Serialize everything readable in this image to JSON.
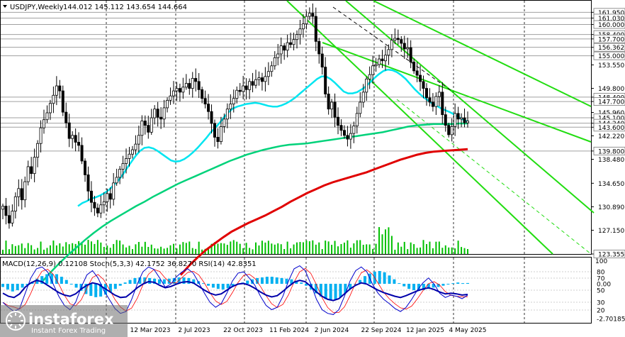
{
  "header": {
    "symbol": "USDJPY,Weekly",
    "ohlc": "144.012 145.112 143.654 144.664"
  },
  "indicator_label": "MACD(12,26,9) 0.12108  Stoch(5,3,3) 42.1752 36.8270  RSI(14) 42.8351",
  "watermark": {
    "brand": "instaforex",
    "tagline": "Instant Forex Trading"
  },
  "colors": {
    "candle": "#000000",
    "volume": "#00c000",
    "ma_fast": "#00e5f0",
    "ma_mid": "#00d27a",
    "ma_slow": "#e00000",
    "channel": "#22dd11",
    "macd_hist": "#00b0f0",
    "stoch_main": "#0000cc",
    "stoch_signal": "#ff0000",
    "rsi": "#0000aa",
    "level_line": "#a0a0a0",
    "watermark_bg": "#6e6e6e"
  },
  "chart_data": {
    "type": "candlestick",
    "timeframe": "Weekly",
    "ylim": [
      123.355,
      163.8
    ],
    "price_levels": [
      {
        "label": "161.950",
        "value": 161.95
      },
      {
        "label": "161.030",
        "value": 161.03
      },
      {
        "label": "160.000",
        "value": 160.0
      },
      {
        "label": "158.400",
        "value": 158.4
      },
      {
        "label": "157.700",
        "value": 157.7
      },
      {
        "label": "156.362",
        "value": 156.362
      },
      {
        "label": "155.000",
        "value": 155.0
      },
      {
        "label": "153.550",
        "value": 153.55
      },
      {
        "label": "149.800",
        "value": 149.8
      },
      {
        "label": "148.400",
        "value": 148.4
      },
      {
        "label": "147.700",
        "value": 147.7
      },
      {
        "label": "145.960",
        "value": 145.96
      },
      {
        "label": "145.100",
        "value": 145.1
      },
      {
        "label": "144.240",
        "value": 144.24
      },
      {
        "label": "143.600",
        "value": 143.6
      },
      {
        "label": "142.220",
        "value": 142.22
      },
      {
        "label": "139.800",
        "value": 139.8
      },
      {
        "label": "138.480",
        "value": 138.48
      },
      {
        "label": "134.650",
        "value": 134.65
      },
      {
        "label": "130.890",
        "value": 130.89
      },
      {
        "label": "127.150",
        "value": 127.15
      },
      {
        "label": "123.355",
        "value": 123.355
      }
    ],
    "horizontal_lines": [
      161.95,
      161.03,
      160.0,
      158.4,
      157.7,
      156.362,
      155.0,
      148.4,
      147.7,
      145.1,
      144.24,
      143.6,
      139.8
    ],
    "time_labels": [
      "12 Mar 2023",
      "2 Jul 2023",
      "22 Oct 2023",
      "11 Feb 2024",
      "2 Jun 2024",
      "22 Sep 2024",
      "12 Jan 2025",
      "4 May 2025"
    ],
    "close_series": [
      131.0,
      129.5,
      128.3,
      130.2,
      132.5,
      133.8,
      132.0,
      134.9,
      137.3,
      136.2,
      138.8,
      141.0,
      143.5,
      144.8,
      145.9,
      147.4,
      148.7,
      150.2,
      149.4,
      146.0,
      144.3,
      141.8,
      142.3,
      141.2,
      140.7,
      138.2,
      136.0,
      133.4,
      131.6,
      130.7,
      129.9,
      131.2,
      131.7,
      133.0,
      132.1,
      134.7,
      135.6,
      136.9,
      137.8,
      138.6,
      139.3,
      140.0,
      140.9,
      142.3,
      144.6,
      143.9,
      142.8,
      145.1,
      146.5,
      145.2,
      144.9,
      146.7,
      147.9,
      148.6,
      149.4,
      149.8,
      149.2,
      150.0,
      150.6,
      149.8,
      151.4,
      150.9,
      149.6,
      148.2,
      147.3,
      146.1,
      144.2,
      142.0,
      141.3,
      143.7,
      144.9,
      146.5,
      147.3,
      148.2,
      149.5,
      149.3,
      150.2,
      149.6,
      150.9,
      150.3,
      151.2,
      151.5,
      150.9,
      151.7,
      152.5,
      153.4,
      154.7,
      155.3,
      156.6,
      155.9,
      157.1,
      156.8,
      157.6,
      158.4,
      159.3,
      160.1,
      161.3,
      161.8,
      161.3,
      157.3,
      155.3,
      153.2,
      148.9,
      146.5,
      147.6,
      145.2,
      143.9,
      143.1,
      142.3,
      141.7,
      142.6,
      143.8,
      145.8,
      147.6,
      149.2,
      151.3,
      152.0,
      153.4,
      153.6,
      154.5,
      154.2,
      155.1,
      156.0,
      157.5,
      157.8,
      157.6,
      157.0,
      156.1,
      156.3,
      154.0,
      152.6,
      151.9,
      150.9,
      149.8,
      148.3,
      147.6,
      146.9,
      148.5,
      149.2,
      145.6,
      143.9,
      142.4,
      143.7,
      145.8,
      144.9,
      145.1,
      144.3,
      144.6
    ],
    "ma_fast_series": [
      131.0,
      131.5,
      131.8,
      132.2,
      132.4,
      132.7,
      133.1,
      133.6,
      134.3,
      135.0,
      135.9,
      137.0,
      138.0,
      139.0,
      139.8,
      140.3,
      140.4,
      140.2,
      139.8,
      139.3,
      138.8,
      138.3,
      138.1,
      138.2,
      138.5,
      139.0,
      139.6,
      140.3,
      141.1,
      141.9,
      142.8,
      143.5,
      144.3,
      145.2,
      146.0,
      146.6,
      146.9,
      147.1,
      147.3,
      147.4,
      147.5,
      147.4,
      147.2,
      147.0,
      146.9,
      146.9,
      147.1,
      147.4,
      147.8,
      148.3,
      148.9,
      149.5,
      150.1,
      150.7,
      151.3,
      151.7,
      151.7,
      151.3,
      150.7,
      150.0,
      149.3,
      149.0,
      149.0,
      149.2,
      149.6,
      150.1,
      150.8,
      151.5,
      152.1,
      152.6,
      152.8,
      152.7,
      152.4,
      151.9,
      151.3,
      150.5,
      149.7,
      149.0,
      148.4,
      147.9,
      147.4,
      147.0,
      146.6,
      146.3,
      146.0,
      145.6,
      145.2,
      144.8,
      144.5
    ],
    "ma_mid_series": [
      119.0,
      120.5,
      121.9,
      123.2,
      124.4,
      125.6,
      126.7,
      127.7,
      128.6,
      129.4,
      130.2,
      131.0,
      131.7,
      132.5,
      133.2,
      133.9,
      134.6,
      135.2,
      135.8,
      136.4,
      137.0,
      137.6,
      138.2,
      138.7,
      139.2,
      139.6,
      140.0,
      140.3,
      140.6,
      140.8,
      140.9,
      141.0,
      141.2,
      141.4,
      141.6,
      141.8,
      142.0,
      142.2,
      142.4,
      142.6,
      142.8,
      143.1,
      143.4,
      143.7,
      143.9,
      144.0,
      144.1,
      144.1,
      144.1,
      144.2,
      144.2
    ],
    "ma_slow_series": [
      120.0,
      121.5,
      122.8,
      124.0,
      125.0,
      126.0,
      126.9,
      127.6,
      128.3,
      128.9,
      129.5,
      130.2,
      130.9,
      131.7,
      132.4,
      133.1,
      133.7,
      134.3,
      134.8,
      135.2,
      135.6,
      136.0,
      136.4,
      136.9,
      137.4,
      137.9,
      138.4,
      138.8,
      139.2,
      139.5,
      139.7,
      139.8,
      139.9,
      140.0,
      140.1
    ],
    "macd_hist_series": [
      -0.5,
      -0.9,
      -1.2,
      -1.0,
      -0.6,
      -0.2,
      0.3,
      0.8,
      1.2,
      1.5,
      1.6,
      1.5,
      1.1,
      0.6,
      0.0,
      -0.6,
      -1.1,
      -1.6,
      -1.9,
      -2.1,
      -2.0,
      -1.7,
      -1.3,
      -0.8,
      -0.3,
      0.2,
      0.6,
      0.9,
      1.0,
      1.0,
      0.9,
      0.8,
      0.7,
      0.7,
      0.8,
      0.9,
      1.0,
      1.0,
      0.9,
      0.7,
      0.4,
      0.1,
      -0.3,
      -0.6,
      -0.8,
      -0.9,
      -0.7,
      -0.4,
      -0.1,
      0.2,
      0.5,
      0.7,
      0.9,
      1.0,
      1.1,
      1.1,
      1.0,
      0.9,
      0.8,
      0.7,
      0.5,
      0.2,
      -0.3,
      -0.9,
      -1.5,
      -2.0,
      -2.4,
      -2.6,
      -2.5,
      -2.1,
      -1.5,
      -0.8,
      -0.1,
      0.6,
      1.2,
      1.6,
      1.9,
      2.0,
      1.8,
      1.3,
      0.7,
      0.1,
      -0.4,
      -0.8,
      -1.0,
      -1.1,
      -1.0,
      -0.8,
      -0.6,
      -0.5,
      -0.3,
      -0.1,
      0.1,
      0.2,
      0.1,
      0.12
    ],
    "stoch_series": [
      30,
      22,
      15,
      20,
      45,
      70,
      85,
      88,
      80,
      60,
      40,
      25,
      18,
      30,
      55,
      75,
      82,
      70,
      50,
      35,
      20,
      12,
      15,
      35,
      60,
      80,
      88,
      84,
      70,
      55,
      60,
      72,
      80,
      85,
      78,
      62,
      45,
      30,
      22,
      28,
      45,
      65,
      78,
      80,
      70,
      58,
      40,
      25,
      18,
      22,
      40,
      65,
      85,
      90,
      82,
      60,
      35,
      18,
      12,
      10,
      18,
      40,
      65,
      82,
      88,
      80,
      60,
      45,
      35,
      28,
      20,
      15,
      22,
      35,
      50,
      62,
      70,
      60,
      45,
      38,
      42,
      40,
      36,
      42
    ],
    "rsi_series": [
      45,
      40,
      38,
      44,
      55,
      62,
      66,
      64,
      58,
      52,
      46,
      42,
      40,
      44,
      52,
      58,
      62,
      60,
      54,
      48,
      42,
      38,
      39,
      46,
      54,
      60,
      64,
      63,
      58,
      54,
      56,
      60,
      63,
      64,
      62,
      56,
      50,
      45,
      42,
      44,
      50,
      56,
      60,
      61,
      58,
      53,
      47,
      42,
      39,
      41,
      48,
      56,
      63,
      66,
      64,
      56,
      47,
      40,
      35,
      33,
      36,
      44,
      52,
      58,
      62,
      60,
      55,
      50,
      46,
      43,
      40,
      38,
      41,
      45,
      49,
      52,
      54,
      51,
      47,
      44,
      45,
      44,
      42,
      43
    ]
  }
}
